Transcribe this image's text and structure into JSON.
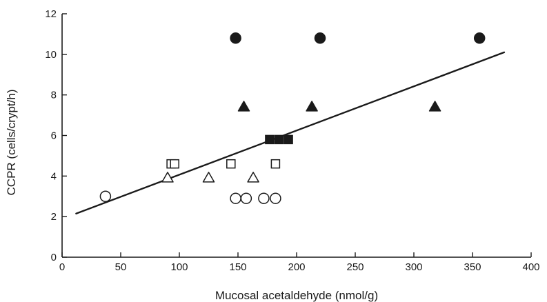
{
  "chart_data": {
    "type": "scatter",
    "title": "",
    "xlabel": "Mucosal acetaldehyde (nmol/g)",
    "ylabel": "CCPR (cells/crypt/h)",
    "xlim": [
      0,
      400
    ],
    "ylim": [
      0,
      12
    ],
    "x_ticks": [
      "0",
      "50",
      "100",
      "150",
      "200",
      "250",
      "300",
      "350",
      "400"
    ],
    "y_ticks": [
      "0",
      "2",
      "4",
      "6",
      "8",
      "10",
      "12"
    ],
    "grid": false,
    "legend": "none",
    "series": [
      {
        "marker": "open-circle",
        "color": "#1a1a1a",
        "points": [
          [
            37,
            3.0
          ],
          [
            148,
            2.9
          ],
          [
            157,
            2.9
          ],
          [
            172,
            2.9
          ],
          [
            182,
            2.9
          ]
        ]
      },
      {
        "marker": "open-triangle",
        "color": "#1a1a1a",
        "points": [
          [
            90,
            3.9
          ],
          [
            125,
            3.9
          ],
          [
            163,
            3.9
          ]
        ]
      },
      {
        "marker": "open-square",
        "color": "#1a1a1a",
        "points": [
          [
            93,
            4.6
          ],
          [
            96,
            4.6
          ],
          [
            144,
            4.6
          ],
          [
            182,
            4.6
          ]
        ]
      },
      {
        "marker": "filled-square",
        "color": "#1a1a1a",
        "points": [
          [
            177,
            5.8
          ],
          [
            185,
            5.8
          ],
          [
            193,
            5.8
          ]
        ]
      },
      {
        "marker": "filled-triangle",
        "color": "#1a1a1a",
        "points": [
          [
            155,
            7.4
          ],
          [
            213,
            7.4
          ],
          [
            318,
            7.4
          ]
        ]
      },
      {
        "marker": "filled-circle",
        "color": "#1a1a1a",
        "points": [
          [
            148,
            10.8
          ],
          [
            220,
            10.8
          ],
          [
            356,
            10.8
          ]
        ]
      }
    ],
    "regression_line": {
      "x": [
        12,
        377
      ],
      "y": [
        2.15,
        10.1
      ],
      "color": "#1a1a1a"
    }
  }
}
